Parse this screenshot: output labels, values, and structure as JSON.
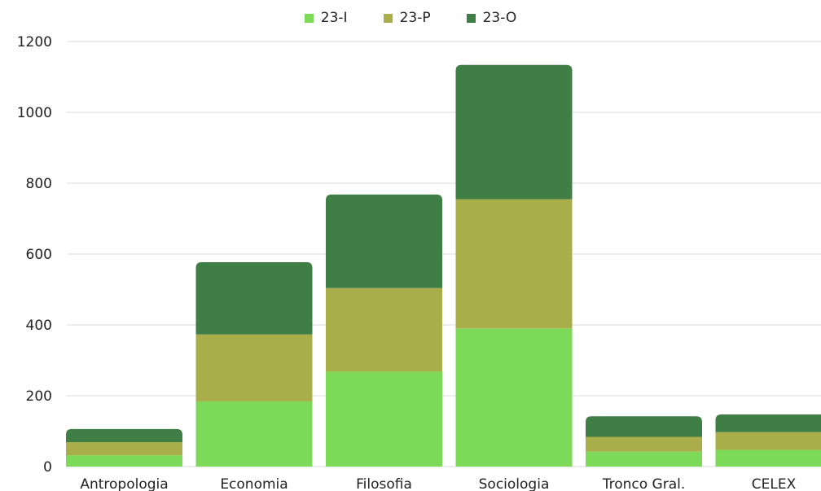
{
  "chart_data": {
    "type": "bar",
    "stacked": true,
    "categories": [
      "Antropologia",
      "Economia",
      "Filosofia",
      "Sociologia",
      "Tronco Gral.",
      "CELEX"
    ],
    "series": [
      {
        "name": "23-I",
        "color": "#7dda58",
        "values": [
          32,
          184,
          268,
          390,
          42,
          47
        ]
      },
      {
        "name": "23-P",
        "color": "#aaae4a",
        "values": [
          37,
          189,
          236,
          365,
          42,
          50
        ]
      },
      {
        "name": "23-O",
        "color": "#3f7f46",
        "values": [
          37,
          204,
          264,
          379,
          58,
          50
        ]
      }
    ],
    "ylim": [
      0,
      1200
    ],
    "yticks": [
      "0",
      "200",
      "400",
      "600",
      "800",
      "1000",
      "1200"
    ],
    "grid": true,
    "legend_position": "top-center"
  }
}
